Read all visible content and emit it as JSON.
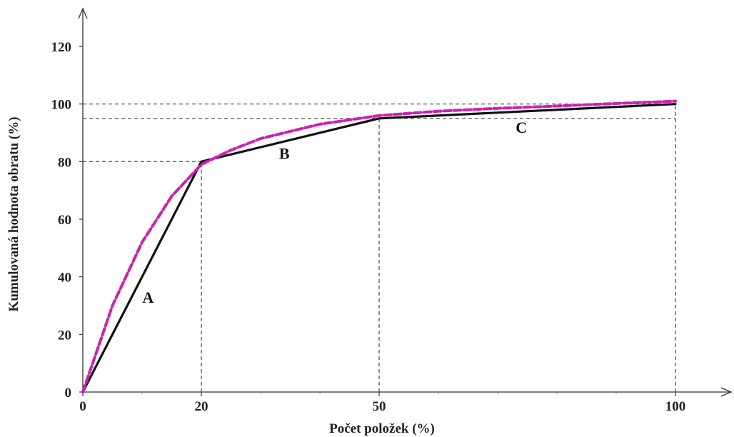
{
  "chart_data": {
    "type": "line",
    "xlabel": "Počet položek (%)",
    "ylabel": "Kumulovaná hodnota obratu (%)",
    "xlim": [
      0,
      100
    ],
    "ylim": [
      0,
      120
    ],
    "x_ticks": [
      0,
      20,
      50,
      100
    ],
    "x_tick_labels": [
      "0",
      "20",
      "50",
      "100"
    ],
    "y_ticks": [
      0,
      20,
      40,
      60,
      80,
      100,
      120
    ],
    "y_tick_labels": [
      "0",
      "20",
      "40",
      "60",
      "80",
      "100",
      "120"
    ],
    "x_minor_ticks": [
      10,
      30,
      40,
      60,
      70,
      80,
      90
    ],
    "series": [
      {
        "style": "solid",
        "color": "#111111",
        "x": [
          0,
          20,
          50,
          100
        ],
        "y": [
          0,
          80,
          95,
          100
        ]
      },
      {
        "style": "dashed",
        "color": "#d01fb0",
        "x": [
          0,
          5,
          10,
          15,
          20,
          25,
          30,
          40,
          50,
          60,
          70,
          80,
          90,
          100
        ],
        "y": [
          0,
          30,
          52,
          68,
          79,
          84,
          88,
          93,
          96,
          97.5,
          98.5,
          99.3,
          100.2,
          101
        ]
      }
    ],
    "reference_lines": [
      {
        "orientation": "horizontal",
        "y": 100,
        "x_to": 100
      },
      {
        "orientation": "horizontal",
        "y": 95,
        "x_to": 100
      },
      {
        "orientation": "horizontal",
        "y": 80,
        "x_to": 20
      },
      {
        "orientation": "vertical",
        "x": 20,
        "y_to": 80
      },
      {
        "orientation": "vertical",
        "x": 50,
        "y_to": 95
      },
      {
        "orientation": "vertical",
        "x": 100,
        "y_to": 100
      }
    ],
    "annotations": [
      {
        "text": "A",
        "x": 11,
        "y": 31
      },
      {
        "text": "B",
        "x": 34,
        "y": 81
      },
      {
        "text": "C",
        "x": 74,
        "y": 90
      }
    ]
  }
}
